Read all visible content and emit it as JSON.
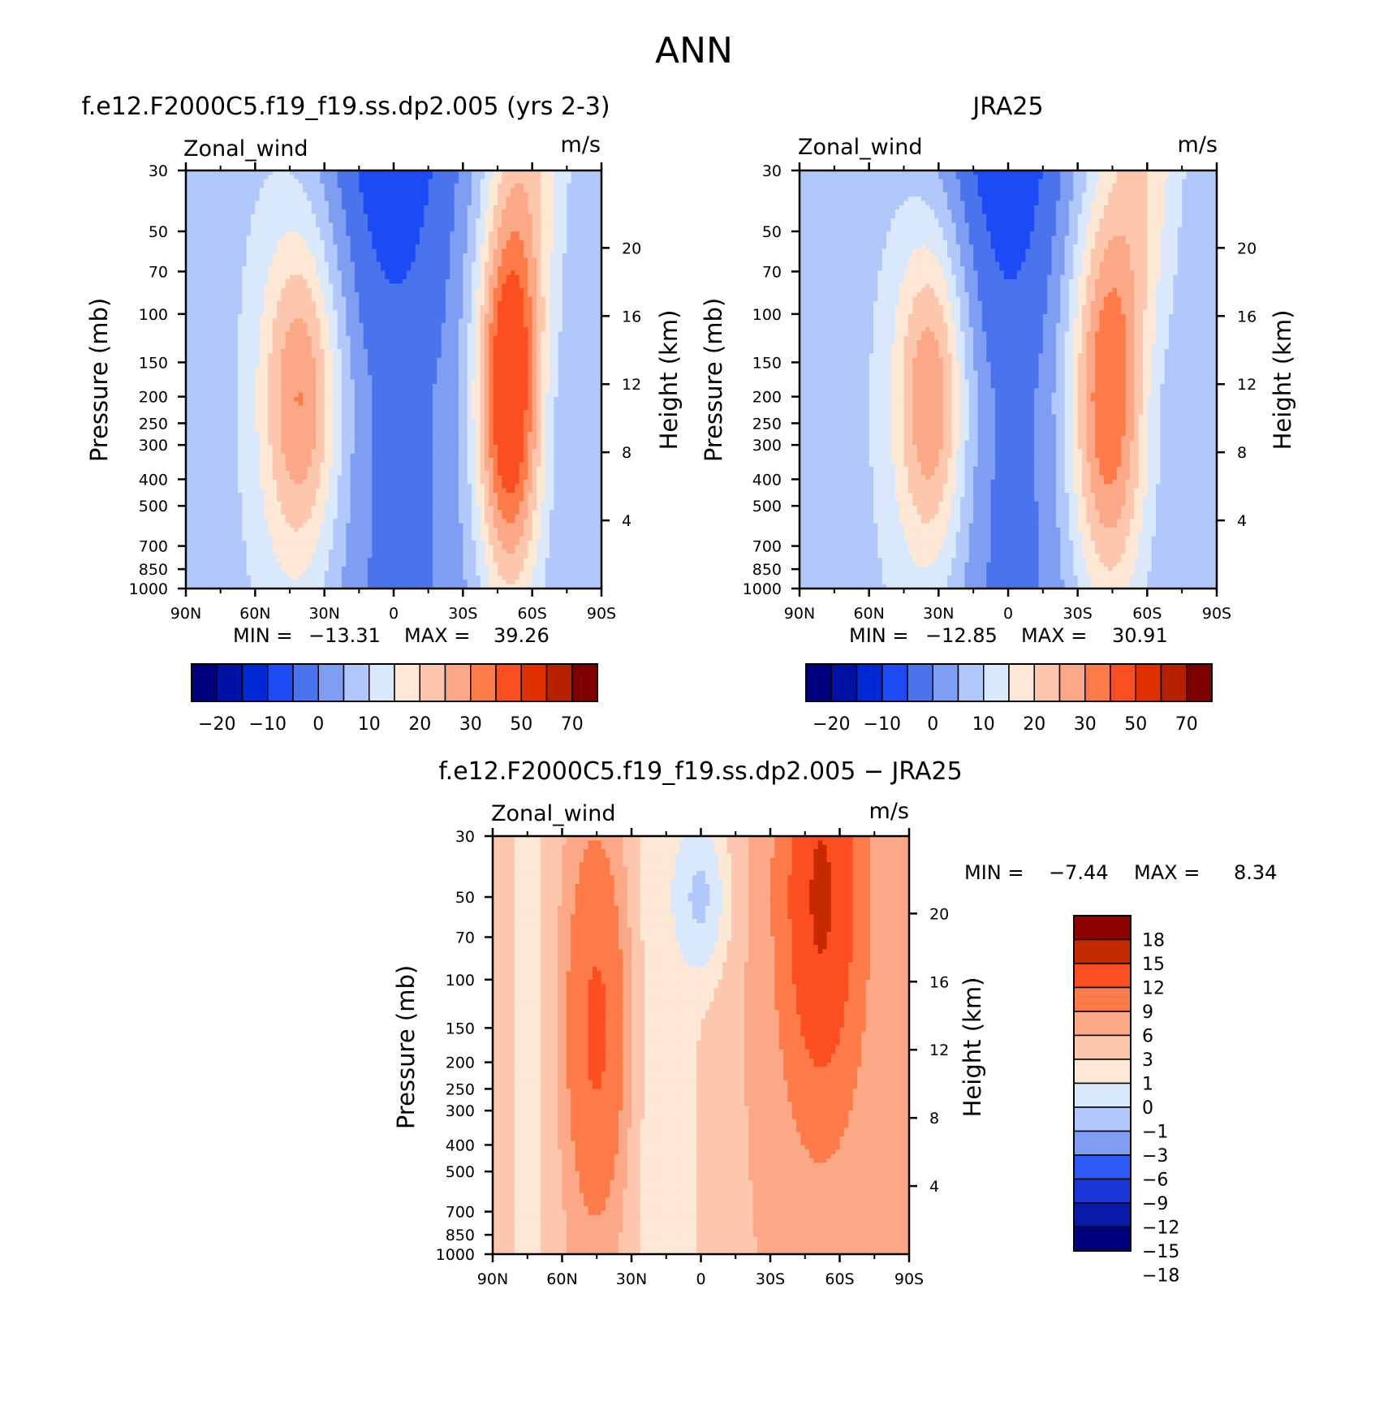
{
  "figure": {
    "title": "ANN"
  },
  "palette": {
    "model_obs": [
      "#00007f",
      "#0012a6",
      "#0029d6",
      "#1c4af5",
      "#4a74ee",
      "#7e9ef2",
      "#b1c8fb",
      "#d9e9fb",
      "#fde7d5",
      "#fcc7ac",
      "#fba886",
      "#fd7b48",
      "#fc4e20",
      "#e03000",
      "#b72100",
      "#7c0000"
    ],
    "diff": [
      "#00007f",
      "#0a1aa8",
      "#1a36d8",
      "#2d5af5",
      "#7e9ef2",
      "#b1c8fb",
      "#d9e9fb",
      "#fde7d5",
      "#fcc7ac",
      "#fba886",
      "#fd7b48",
      "#fc4e20",
      "#c62a00",
      "#8c0000"
    ]
  },
  "chart_data": [
    {
      "type": "heatmap",
      "panel": "model",
      "title": "f.e12.F2000C5.f19_f19.ss.dp2.005 (yrs 2-3)",
      "variable": "Zonal_wind",
      "units": "m/s",
      "x_ticks": [
        "90N",
        "60N",
        "30N",
        "0",
        "30S",
        "60S",
        "90S"
      ],
      "y_ticks": [
        "30",
        "50",
        "70",
        "100",
        "150",
        "200",
        "250",
        "300",
        "400",
        "500",
        "700",
        "850",
        "1000"
      ],
      "y_right_ticks": [
        "20",
        "16",
        "12",
        "8",
        "4"
      ],
      "ylabel": "Pressure (mb)",
      "ylabel_right": "Height (km)",
      "xlim": [
        90,
        -90
      ],
      "ylim": [
        1000,
        30
      ],
      "y_scale": "log",
      "min_label": "MIN = ",
      "min_value": "−13.31",
      "max_label": "MAX = ",
      "max_value": "39.26",
      "colorbar": {
        "orientation": "horizontal",
        "levels": [
          -25,
          -20,
          -15,
          -10,
          -5,
          0,
          5,
          10,
          15,
          20,
          25,
          30,
          40,
          50,
          60,
          70
        ],
        "tick_labels": [
          "−20",
          "−10",
          "0",
          "10",
          "20",
          "30",
          "50",
          "70"
        ]
      },
      "jets": [
        {
          "lat": 40,
          "p": 200,
          "peak": 23,
          "lat_width": 12,
          "logp_width": 0.45
        },
        {
          "lat": -50,
          "p": 200,
          "peak": 39.3,
          "lat_width": 10,
          "logp_width": 0.5
        }
      ]
    },
    {
      "type": "heatmap",
      "panel": "obs",
      "title": "JRA25",
      "variable": "Zonal_wind",
      "units": "m/s",
      "x_ticks": [
        "90N",
        "60N",
        "30N",
        "0",
        "30S",
        "60S",
        "90S"
      ],
      "y_ticks": [
        "30",
        "50",
        "70",
        "100",
        "150",
        "200",
        "250",
        "300",
        "400",
        "500",
        "700",
        "850",
        "1000"
      ],
      "y_right_ticks": [
        "20",
        "16",
        "12",
        "8",
        "4"
      ],
      "ylabel": "Pressure (mb)",
      "ylabel_right": "Height (km)",
      "xlim": [
        90,
        -90
      ],
      "ylim": [
        1000,
        30
      ],
      "y_scale": "log",
      "min_label": "MIN = ",
      "min_value": "−12.85",
      "max_label": "MAX = ",
      "max_value": "30.91",
      "colorbar": {
        "orientation": "horizontal",
        "levels": [
          -25,
          -20,
          -15,
          -10,
          -5,
          0,
          5,
          10,
          15,
          20,
          25,
          30,
          40,
          50,
          60,
          70
        ],
        "tick_labels": [
          "−20",
          "−10",
          "0",
          "10",
          "20",
          "30",
          "50",
          "70"
        ]
      },
      "jets": [
        {
          "lat": 33,
          "p": 200,
          "peak": 24,
          "lat_width": 11,
          "logp_width": 0.45
        },
        {
          "lat": -43,
          "p": 200,
          "peak": 30.9,
          "lat_width": 12,
          "logp_width": 0.55
        }
      ]
    },
    {
      "type": "heatmap",
      "panel": "difference",
      "title": "f.e12.F2000C5.f19_f19.ss.dp2.005 − JRA25",
      "variable": "Zonal_wind",
      "units": "m/s",
      "x_ticks": [
        "90N",
        "60N",
        "30N",
        "0",
        "30S",
        "60S",
        "90S"
      ],
      "y_ticks": [
        "30",
        "50",
        "70",
        "100",
        "150",
        "200",
        "250",
        "300",
        "400",
        "500",
        "700",
        "850",
        "1000"
      ],
      "y_right_ticks": [
        "20",
        "16",
        "12",
        "8",
        "4"
      ],
      "ylabel": "Pressure (mb)",
      "ylabel_right": "Height (km)",
      "xlim": [
        90,
        -90
      ],
      "ylim": [
        1000,
        30
      ],
      "y_scale": "log",
      "min_label": "MIN = ",
      "min_value": "−7.44",
      "max_label": "MAX = ",
      "max_value": "8.34",
      "colorbar": {
        "orientation": "vertical",
        "levels": [
          -21,
          -18,
          -15,
          -12,
          -9,
          -6,
          -3,
          -1,
          0,
          1,
          3,
          6,
          9,
          12,
          15,
          18,
          21
        ],
        "tick_labels": [
          "18",
          "15",
          "12",
          "9",
          "6",
          "3",
          "1",
          "0",
          "−1",
          "−3",
          "−6",
          "−9",
          "−12",
          "−15",
          "−18"
        ]
      }
    }
  ]
}
